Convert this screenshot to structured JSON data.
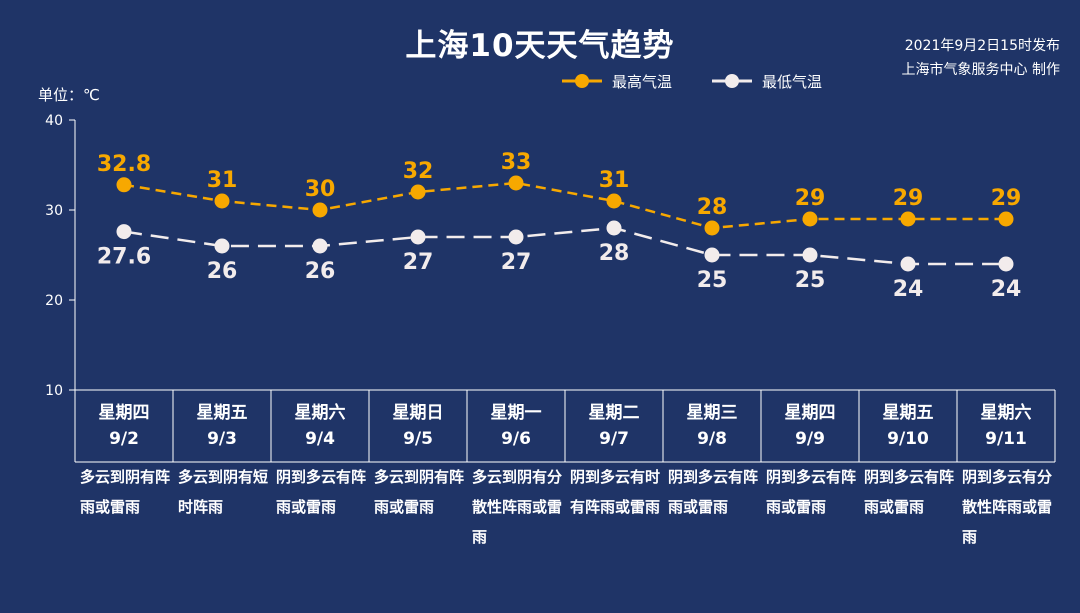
{
  "title": "上海10天天气趋势",
  "issue": {
    "time": "2021年9月2日15时发布",
    "source": "上海市气象服务中心 制作"
  },
  "unit": "单位：℃",
  "colors": {
    "high": "#f7a800",
    "low": "#f2ecec",
    "background": "#1f3467"
  },
  "chart_data": {
    "type": "line",
    "categories": [
      "9/2",
      "9/3",
      "9/4",
      "9/5",
      "9/6",
      "9/7",
      "9/8",
      "9/9",
      "9/10",
      "9/11"
    ],
    "series": [
      {
        "name": "最高气温",
        "values": [
          32.8,
          31,
          30,
          32,
          33,
          31,
          28,
          29,
          29,
          29
        ],
        "labels": [
          "32.8",
          "31",
          "30",
          "32",
          "33",
          "31",
          "28",
          "29",
          "29",
          "29"
        ]
      },
      {
        "name": "最低气温",
        "values": [
          27.6,
          26,
          26,
          27,
          27,
          28,
          25,
          25,
          24,
          24
        ],
        "labels": [
          "27.6",
          "26",
          "26",
          "27",
          "27",
          "28",
          "25",
          "25",
          "24",
          "24"
        ]
      }
    ],
    "ylim": [
      10,
      40
    ],
    "yticks": [
      "40",
      "30",
      "20",
      "10"
    ],
    "line_style": "dashed"
  },
  "days": [
    {
      "weekday": "星期四",
      "date": "9/2",
      "weather": "多云到阴有阵雨或雷雨"
    },
    {
      "weekday": "星期五",
      "date": "9/3",
      "weather": "多云到阴有短时阵雨"
    },
    {
      "weekday": "星期六",
      "date": "9/4",
      "weather": "阴到多云有阵雨或雷雨"
    },
    {
      "weekday": "星期日",
      "date": "9/5",
      "weather": "多云到阴有阵雨或雷雨"
    },
    {
      "weekday": "星期一",
      "date": "9/6",
      "weather": "多云到阴有分散性阵雨或雷雨"
    },
    {
      "weekday": "星期二",
      "date": "9/7",
      "weather": "阴到多云有时有阵雨或雷雨"
    },
    {
      "weekday": "星期三",
      "date": "9/8",
      "weather": "阴到多云有阵雨或雷雨"
    },
    {
      "weekday": "星期四",
      "date": "9/9",
      "weather": "阴到多云有阵雨或雷雨"
    },
    {
      "weekday": "星期五",
      "date": "9/10",
      "weather": "阴到多云有阵雨或雷雨"
    },
    {
      "weekday": "星期六",
      "date": "9/11",
      "weather": "阴到多云有分散性阵雨或雷雨"
    }
  ]
}
